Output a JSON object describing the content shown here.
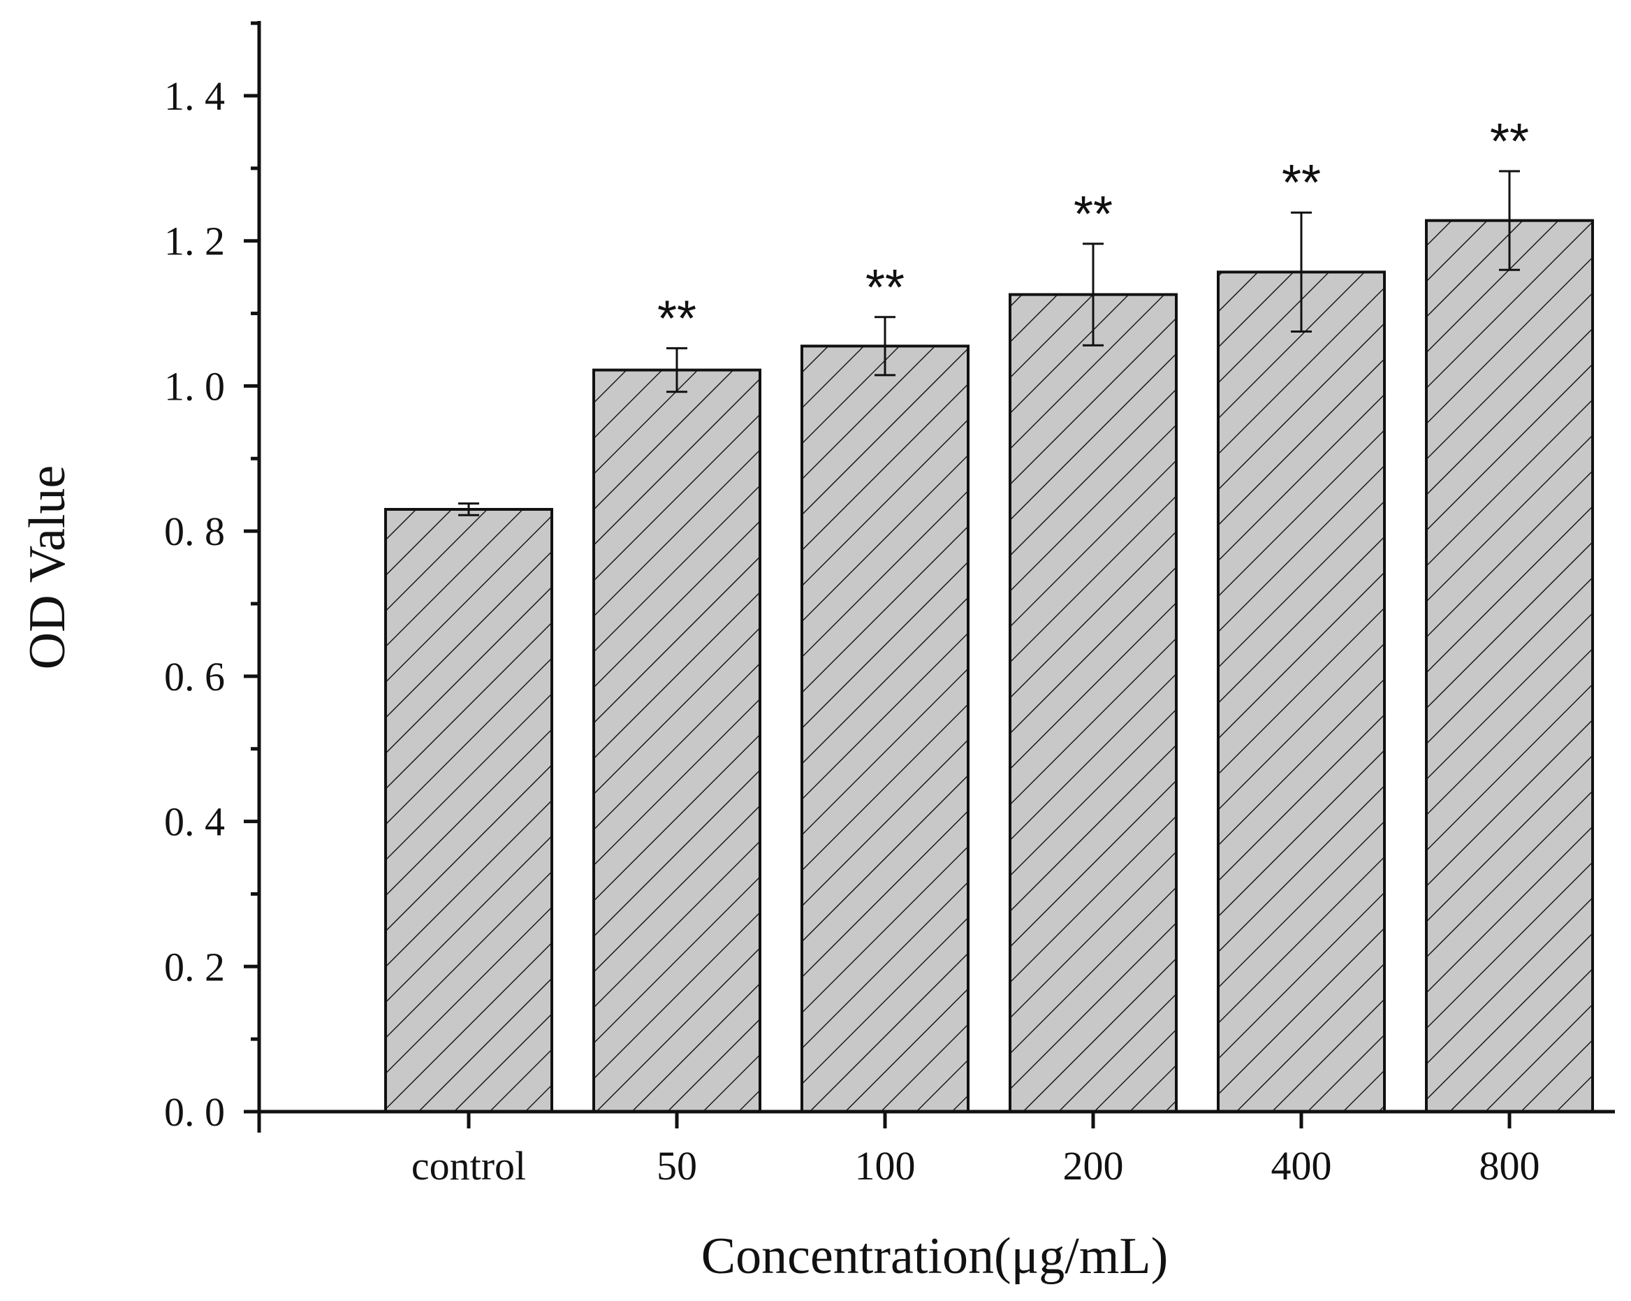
{
  "chart_data": {
    "type": "bar",
    "title": "",
    "xlabel": "Concentration(μg/mL)",
    "ylabel": "OD Value",
    "categories": [
      "control",
      "50",
      "100",
      "200",
      "400",
      "800"
    ],
    "values": [
      0.83,
      1.022,
      1.055,
      1.126,
      1.157,
      1.228
    ],
    "errors": [
      0.008,
      0.03,
      0.04,
      0.07,
      0.082,
      0.068
    ],
    "significance": [
      "",
      "**",
      "**",
      "**",
      "**",
      "**"
    ],
    "ylim": [
      0,
      1.5
    ],
    "yticks": [
      0.0,
      0.2,
      0.4,
      0.6,
      0.8,
      1.0,
      1.2,
      1.4
    ],
    "ytick_labels": [
      "0. 0",
      "0. 2",
      "0. 4",
      "0. 6",
      "0. 8",
      "1. 0",
      "1. 2",
      "1. 4"
    ],
    "grid": false,
    "bar_fill": "#c8c8c8",
    "hatch": "diagonal-backslash",
    "edge_color": "#111111"
  }
}
